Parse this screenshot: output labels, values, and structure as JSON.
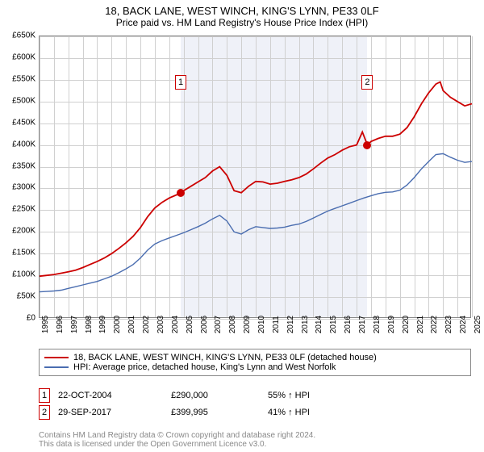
{
  "title": "18, BACK LANE, WEST WINCH, KING'S LYNN, PE33 0LF",
  "subtitle": "Price paid vs. HM Land Registry's House Price Index (HPI)",
  "chart": {
    "type": "line",
    "background_color": "#ffffff",
    "grid_color": "#d8d8d8",
    "border_color": "#888888",
    "y_axis": {
      "min": 0,
      "max": 650000,
      "step": 50000,
      "prefix": "£",
      "suffix": "K",
      "ticks": [
        "£0",
        "£50K",
        "£100K",
        "£150K",
        "£200K",
        "£250K",
        "£300K",
        "£350K",
        "£400K",
        "£450K",
        "£500K",
        "£550K",
        "£600K",
        "£650K"
      ]
    },
    "x_axis": {
      "min": 1995,
      "max": 2025,
      "step": 1,
      "years": [
        1995,
        1996,
        1997,
        1998,
        1999,
        2000,
        2001,
        2002,
        2003,
        2004,
        2005,
        2006,
        2007,
        2008,
        2009,
        2010,
        2011,
        2012,
        2013,
        2014,
        2015,
        2016,
        2017,
        2018,
        2019,
        2020,
        2021,
        2022,
        2023,
        2024,
        2025
      ]
    },
    "shaded_region": {
      "start": 2004.8,
      "end": 2017.75,
      "color": "rgba(120,140,200,0.12)"
    },
    "series": [
      {
        "name": "property",
        "label": "18, BACK LANE, WEST WINCH, KING'S LYNN, PE33 0LF (detached house)",
        "color": "#cc0000",
        "line_width": 1.8,
        "data": [
          [
            1995,
            98000
          ],
          [
            1995.5,
            100000
          ],
          [
            1996,
            102000
          ],
          [
            1996.5,
            105000
          ],
          [
            1997,
            108000
          ],
          [
            1997.5,
            112000
          ],
          [
            1998,
            118000
          ],
          [
            1998.5,
            125000
          ],
          [
            1999,
            132000
          ],
          [
            1999.5,
            140000
          ],
          [
            2000,
            150000
          ],
          [
            2000.5,
            162000
          ],
          [
            2001,
            175000
          ],
          [
            2001.5,
            190000
          ],
          [
            2002,
            210000
          ],
          [
            2002.5,
            235000
          ],
          [
            2003,
            255000
          ],
          [
            2003.5,
            268000
          ],
          [
            2004,
            278000
          ],
          [
            2004.5,
            285000
          ],
          [
            2004.8,
            290000
          ],
          [
            2005,
            295000
          ],
          [
            2005.5,
            305000
          ],
          [
            2006,
            315000
          ],
          [
            2006.5,
            325000
          ],
          [
            2007,
            340000
          ],
          [
            2007.5,
            350000
          ],
          [
            2008,
            330000
          ],
          [
            2008.5,
            295000
          ],
          [
            2009,
            290000
          ],
          [
            2009.5,
            305000
          ],
          [
            2010,
            316000
          ],
          [
            2010.5,
            315000
          ],
          [
            2011,
            310000
          ],
          [
            2011.5,
            312000
          ],
          [
            2012,
            316000
          ],
          [
            2012.5,
            320000
          ],
          [
            2013,
            325000
          ],
          [
            2013.5,
            333000
          ],
          [
            2014,
            345000
          ],
          [
            2014.5,
            358000
          ],
          [
            2015,
            370000
          ],
          [
            2015.5,
            378000
          ],
          [
            2016,
            388000
          ],
          [
            2016.5,
            396000
          ],
          [
            2017,
            400000
          ],
          [
            2017.4,
            430000
          ],
          [
            2017.75,
            400000
          ],
          [
            2018,
            408000
          ],
          [
            2018.5,
            415000
          ],
          [
            2019,
            420000
          ],
          [
            2019.5,
            420000
          ],
          [
            2020,
            425000
          ],
          [
            2020.5,
            440000
          ],
          [
            2021,
            465000
          ],
          [
            2021.5,
            495000
          ],
          [
            2022,
            520000
          ],
          [
            2022.5,
            540000
          ],
          [
            2022.8,
            545000
          ],
          [
            2023,
            525000
          ],
          [
            2023.5,
            510000
          ],
          [
            2024,
            500000
          ],
          [
            2024.5,
            490000
          ],
          [
            2025,
            495000
          ]
        ]
      },
      {
        "name": "hpi",
        "label": "HPI: Average price, detached house, King's Lynn and West Norfolk",
        "color": "#4a6db0",
        "line_width": 1.4,
        "data": [
          [
            1995,
            62000
          ],
          [
            1995.5,
            63000
          ],
          [
            1996,
            64000
          ],
          [
            1996.5,
            66000
          ],
          [
            1997,
            70000
          ],
          [
            1997.5,
            74000
          ],
          [
            1998,
            78000
          ],
          [
            1998.5,
            82000
          ],
          [
            1999,
            86000
          ],
          [
            1999.5,
            92000
          ],
          [
            2000,
            98000
          ],
          [
            2000.5,
            106000
          ],
          [
            2001,
            115000
          ],
          [
            2001.5,
            125000
          ],
          [
            2002,
            140000
          ],
          [
            2002.5,
            158000
          ],
          [
            2003,
            172000
          ],
          [
            2003.5,
            180000
          ],
          [
            2004,
            186000
          ],
          [
            2004.5,
            192000
          ],
          [
            2005,
            198000
          ],
          [
            2005.5,
            205000
          ],
          [
            2006,
            212000
          ],
          [
            2006.5,
            220000
          ],
          [
            2007,
            230000
          ],
          [
            2007.5,
            238000
          ],
          [
            2008,
            225000
          ],
          [
            2008.5,
            200000
          ],
          [
            2009,
            195000
          ],
          [
            2009.5,
            205000
          ],
          [
            2010,
            212000
          ],
          [
            2010.5,
            210000
          ],
          [
            2011,
            208000
          ],
          [
            2011.5,
            209000
          ],
          [
            2012,
            211000
          ],
          [
            2012.5,
            215000
          ],
          [
            2013,
            218000
          ],
          [
            2013.5,
            224000
          ],
          [
            2014,
            232000
          ],
          [
            2014.5,
            240000
          ],
          [
            2015,
            248000
          ],
          [
            2015.5,
            254000
          ],
          [
            2016,
            260000
          ],
          [
            2016.5,
            266000
          ],
          [
            2017,
            272000
          ],
          [
            2017.5,
            278000
          ],
          [
            2018,
            283000
          ],
          [
            2018.5,
            288000
          ],
          [
            2019,
            291000
          ],
          [
            2019.5,
            292000
          ],
          [
            2020,
            296000
          ],
          [
            2020.5,
            308000
          ],
          [
            2021,
            325000
          ],
          [
            2021.5,
            345000
          ],
          [
            2022,
            362000
          ],
          [
            2022.5,
            378000
          ],
          [
            2023,
            380000
          ],
          [
            2023.5,
            372000
          ],
          [
            2024,
            365000
          ],
          [
            2024.5,
            360000
          ],
          [
            2025,
            362000
          ]
        ]
      }
    ],
    "sale_markers": [
      {
        "n": "1",
        "year": 2004.8,
        "price": 290000,
        "marker_top_y": 560000
      },
      {
        "n": "2",
        "year": 2017.75,
        "price": 400000,
        "marker_top_y": 560000
      }
    ]
  },
  "legend": {
    "rows": [
      {
        "color": "#cc0000",
        "label": "18, BACK LANE, WEST WINCH, KING'S LYNN, PE33 0LF (detached house)"
      },
      {
        "color": "#4a6db0",
        "label": "HPI: Average price, detached house, King's Lynn and West Norfolk"
      }
    ]
  },
  "sales_table": {
    "rows": [
      {
        "n": "1",
        "date": "22-OCT-2004",
        "price": "£290,000",
        "delta": "55% ↑ HPI"
      },
      {
        "n": "2",
        "date": "29-SEP-2017",
        "price": "£399,995",
        "delta": "41% ↑ HPI"
      }
    ]
  },
  "footer": {
    "line1": "Contains HM Land Registry data © Crown copyright and database right 2024.",
    "line2": "This data is licensed under the Open Government Licence v3.0."
  }
}
